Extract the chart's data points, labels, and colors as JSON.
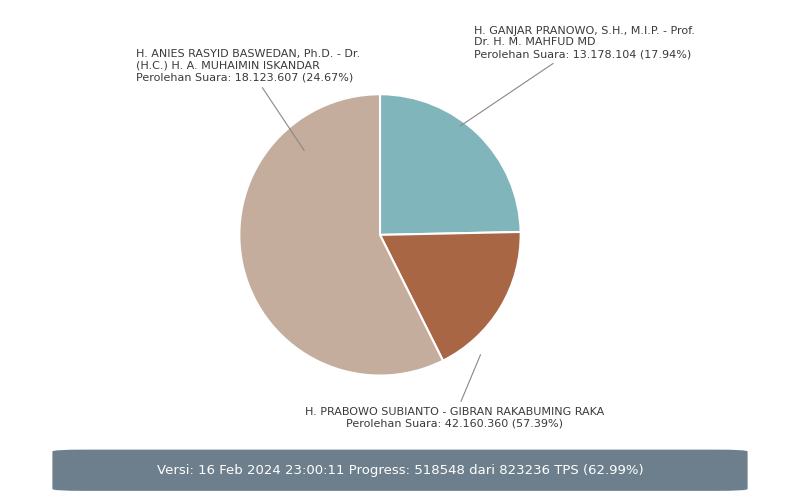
{
  "slices": [
    {
      "label": "Anies",
      "line1": "H. ANIES RASYID BASWEDAN, Ph.D. - Dr.",
      "line2": "(H.C.) H. A. MUHAIMIN ISKANDAR",
      "line3": "Perolehan Suara: 18.123.607 (24.67%)",
      "value": 24.67,
      "color": "#7fb5bb"
    },
    {
      "label": "Ganjar",
      "line1": "H. GANJAR PRANOWO, S.H., M.I.P. - Prof.",
      "line2": "Dr. H. M. MAHFUD MD",
      "line3": "Perolehan Suara: 13.178.104 (17.94%)",
      "value": 17.94,
      "color": "#a86644"
    },
    {
      "label": "Prabowo",
      "line1": "H. PRABOWO SUBIANTO - GIBRAN RAKABUMING RAKA",
      "line2": "Perolehan Suara: 42.160.360 (57.39%)",
      "value": 57.39,
      "color": "#c4ad9d"
    }
  ],
  "footer_text": "Versi: 16 Feb 2024 23:00:11 Progress: 518548 dari 823236 TPS (62.99%)",
  "footer_bg": "#6d7f8c",
  "footer_text_color": "#ffffff",
  "background_color": "#ffffff",
  "label_fontsize": 8.0,
  "start_angle": 90
}
